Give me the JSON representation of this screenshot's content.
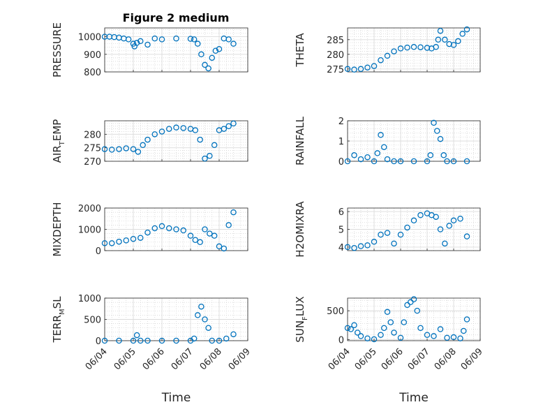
{
  "figure": {
    "title": "Figure 2 medium"
  },
  "chart_data": [
    {
      "type": "scatter",
      "ylabel": "PRESSURE",
      "ylim": [
        800,
        1050
      ],
      "yticks": [
        800,
        900,
        1000
      ],
      "ytick_labels": [
        "800",
        "900",
        "1000"
      ],
      "grid": true,
      "color": "#0072BD",
      "x": [
        "06/04 00:00",
        "06/04 04:00",
        "06/04 08:00",
        "06/04 12:00",
        "06/04 16:00",
        "06/04 20:00",
        "06/05 00:00",
        "06/05 01:00",
        "06/05 03:00",
        "06/05 06:00",
        "06/05 12:00",
        "06/05 18:00",
        "06/06 00:00",
        "06/06 12:00",
        "06/07 00:00",
        "06/07 03:00",
        "06/07 06:00",
        "06/07 09:00",
        "06/07 12:00",
        "06/07 15:00",
        "06/07 18:00",
        "06/07 21:00",
        "06/08 00:00",
        "06/08 04:00",
        "06/08 08:00",
        "06/08 12:00"
      ],
      "y": [
        1000,
        1000,
        998,
        995,
        990,
        985,
        960,
        945,
        965,
        975,
        955,
        990,
        985,
        990,
        988,
        985,
        960,
        900,
        840,
        820,
        880,
        920,
        930,
        990,
        985,
        960
      ]
    },
    {
      "type": "scatter",
      "ylabel": "THETA",
      "ylim": [
        274,
        289
      ],
      "yticks": [
        275,
        280,
        285
      ],
      "ytick_labels": [
        "275",
        "280",
        "285"
      ],
      "grid": true,
      "color": "#0072BD",
      "x": [
        "06/04 00:00",
        "06/04 06:00",
        "06/04 12:00",
        "06/04 18:00",
        "06/05 00:00",
        "06/05 06:00",
        "06/05 12:00",
        "06/05 18:00",
        "06/06 00:00",
        "06/06 06:00",
        "06/06 12:00",
        "06/06 18:00",
        "06/07 00:00",
        "06/07 04:00",
        "06/07 08:00",
        "06/07 10:00",
        "06/07 12:00",
        "06/07 16:00",
        "06/07 20:00",
        "06/08 00:00",
        "06/08 04:00",
        "06/08 08:00",
        "06/08 12:00"
      ],
      "y": [
        275,
        274.8,
        275,
        275.5,
        276,
        278,
        279.5,
        281,
        282,
        282.3,
        282.5,
        282.4,
        282.2,
        282,
        282.5,
        285,
        288,
        285,
        283.5,
        283.2,
        284.5,
        287,
        288.5
      ]
    },
    {
      "type": "scatter",
      "ylabel": "AIR_TEMP",
      "ylabel_parts": {
        "base": "AIR",
        "sub": "T",
        "rest": "EMP"
      },
      "ylim": [
        270,
        285
      ],
      "yticks": [
        270,
        275,
        280
      ],
      "ytick_labels": [
        "270",
        "275",
        "280"
      ],
      "grid": true,
      "color": "#0072BD",
      "x": [
        "06/04 00:00",
        "06/04 06:00",
        "06/04 12:00",
        "06/04 18:00",
        "06/05 00:00",
        "06/05 04:00",
        "06/05 08:00",
        "06/05 12:00",
        "06/05 18:00",
        "06/06 00:00",
        "06/06 06:00",
        "06/06 12:00",
        "06/06 18:00",
        "06/07 00:00",
        "06/07 04:00",
        "06/07 08:00",
        "06/07 12:00",
        "06/07 16:00",
        "06/07 20:00",
        "06/08 00:00",
        "06/08 04:00",
        "06/08 08:00",
        "06/08 12:00"
      ],
      "y": [
        274.5,
        274.3,
        274.5,
        274.8,
        274.5,
        273.5,
        276,
        278,
        280,
        281,
        282,
        282.5,
        282.3,
        282,
        281.5,
        278,
        271,
        272,
        276,
        281.5,
        282,
        283,
        284
      ]
    },
    {
      "type": "scatter",
      "ylabel": "RAINFALL",
      "ylim": [
        0,
        2
      ],
      "yticks": [
        0,
        1,
        2
      ],
      "ytick_labels": [
        "0",
        "1",
        "2"
      ],
      "grid": true,
      "color": "#0072BD",
      "x": [
        "06/04 00:00",
        "06/04 06:00",
        "06/04 12:00",
        "06/04 18:00",
        "06/05 00:00",
        "06/05 03:00",
        "06/05 06:00",
        "06/05 09:00",
        "06/05 12:00",
        "06/05 18:00",
        "06/06 00:00",
        "06/06 12:00",
        "06/07 00:00",
        "06/07 03:00",
        "06/07 06:00",
        "06/07 09:00",
        "06/07 12:00",
        "06/07 15:00",
        "06/07 18:00",
        "06/08 00:00",
        "06/08 12:00"
      ],
      "y": [
        0,
        0.3,
        0.1,
        0.2,
        0,
        0.4,
        1.3,
        0.7,
        0.1,
        0,
        0,
        0,
        0,
        0.3,
        1.9,
        1.5,
        1.1,
        0.3,
        0,
        0,
        0
      ]
    },
    {
      "type": "scatter",
      "ylabel": "MIXDEPTH",
      "ylim": [
        0,
        2000
      ],
      "yticks": [
        0,
        1000,
        2000
      ],
      "ytick_labels": [
        "0",
        "1000",
        "2000"
      ],
      "grid": true,
      "color": "#0072BD",
      "x": [
        "06/04 00:00",
        "06/04 06:00",
        "06/04 12:00",
        "06/04 18:00",
        "06/05 00:00",
        "06/05 06:00",
        "06/05 12:00",
        "06/05 18:00",
        "06/06 00:00",
        "06/06 06:00",
        "06/06 12:00",
        "06/06 18:00",
        "06/07 00:00",
        "06/07 04:00",
        "06/07 08:00",
        "06/07 12:00",
        "06/07 16:00",
        "06/07 20:00",
        "06/08 00:00",
        "06/08 04:00",
        "06/08 08:00",
        "06/08 12:00"
      ],
      "y": [
        350,
        350,
        420,
        480,
        550,
        600,
        850,
        1050,
        1150,
        1050,
        1000,
        950,
        700,
        500,
        400,
        1000,
        800,
        700,
        200,
        100,
        1200,
        1800
      ]
    },
    {
      "type": "scatter",
      "ylabel": "H2OMIXRA",
      "ylim": [
        3.8,
        6.2
      ],
      "yticks": [
        4,
        5,
        6
      ],
      "ytick_labels": [
        "4",
        "5",
        "6"
      ],
      "grid": true,
      "color": "#0072BD",
      "x": [
        "06/04 00:00",
        "06/04 06:00",
        "06/04 12:00",
        "06/04 18:00",
        "06/05 00:00",
        "06/05 06:00",
        "06/05 12:00",
        "06/05 18:00",
        "06/06 00:00",
        "06/06 06:00",
        "06/06 12:00",
        "06/06 18:00",
        "06/07 00:00",
        "06/07 04:00",
        "06/07 08:00",
        "06/07 12:00",
        "06/07 16:00",
        "06/07 20:00",
        "06/08 00:00",
        "06/08 06:00",
        "06/08 12:00"
      ],
      "y": [
        4,
        3.95,
        4.05,
        4.1,
        4.3,
        4.7,
        4.8,
        4.2,
        4.7,
        5.1,
        5.5,
        5.8,
        5.9,
        5.8,
        5.7,
        5,
        4.2,
        5.2,
        5.5,
        5.6,
        4.6
      ]
    },
    {
      "type": "scatter",
      "ylabel": "TERR_MSL",
      "ylabel_parts": {
        "base": "TERR",
        "sub": "M",
        "rest": "SL"
      },
      "ylim": [
        0,
        1000
      ],
      "yticks": [
        0,
        500,
        1000
      ],
      "ytick_labels": [
        "0",
        "500",
        "1000"
      ],
      "grid": true,
      "color": "#0072BD",
      "x": [
        "06/04 00:00",
        "06/04 12:00",
        "06/05 00:00",
        "06/05 03:00",
        "06/05 06:00",
        "06/05 12:00",
        "06/06 00:00",
        "06/06 12:00",
        "06/07 00:00",
        "06/07 03:00",
        "06/07 06:00",
        "06/07 09:00",
        "06/07 12:00",
        "06/07 15:00",
        "06/07 18:00",
        "06/08 00:00",
        "06/08 06:00",
        "06/08 12:00"
      ],
      "y": [
        0,
        0,
        0,
        130,
        0,
        0,
        0,
        0,
        0,
        50,
        600,
        800,
        500,
        300,
        0,
        0,
        50,
        150
      ]
    },
    {
      "type": "scatter",
      "ylabel": "SUN_FLUX",
      "ylabel_parts": {
        "base": "SUN",
        "sub": "F",
        "rest": "LUX"
      },
      "ylim": [
        -20,
        720
      ],
      "yticks": [
        0,
        500
      ],
      "ytick_labels": [
        "0",
        "500"
      ],
      "grid": true,
      "color": "#0072BD",
      "x": [
        "06/04 00:00",
        "06/04 03:00",
        "06/04 06:00",
        "06/04 09:00",
        "06/04 12:00",
        "06/04 18:00",
        "06/05 00:00",
        "06/05 06:00",
        "06/05 09:00",
        "06/05 12:00",
        "06/05 15:00",
        "06/05 18:00",
        "06/06 00:00",
        "06/06 03:00",
        "06/06 06:00",
        "06/06 09:00",
        "06/06 12:00",
        "06/06 15:00",
        "06/06 18:00",
        "06/07 00:00",
        "06/07 06:00",
        "06/07 12:00",
        "06/07 18:00",
        "06/08 00:00",
        "06/08 06:00",
        "06/08 09:00",
        "06/08 12:00"
      ],
      "y": [
        200,
        180,
        250,
        120,
        60,
        20,
        5,
        80,
        200,
        480,
        300,
        120,
        30,
        300,
        600,
        650,
        700,
        500,
        200,
        80,
        60,
        180,
        30,
        40,
        20,
        150,
        350
      ]
    }
  ],
  "xaxis": {
    "tick_labels": [
      "06/04",
      "06/05",
      "06/06",
      "06/07",
      "06/08",
      "06/09"
    ],
    "label": "Time"
  }
}
